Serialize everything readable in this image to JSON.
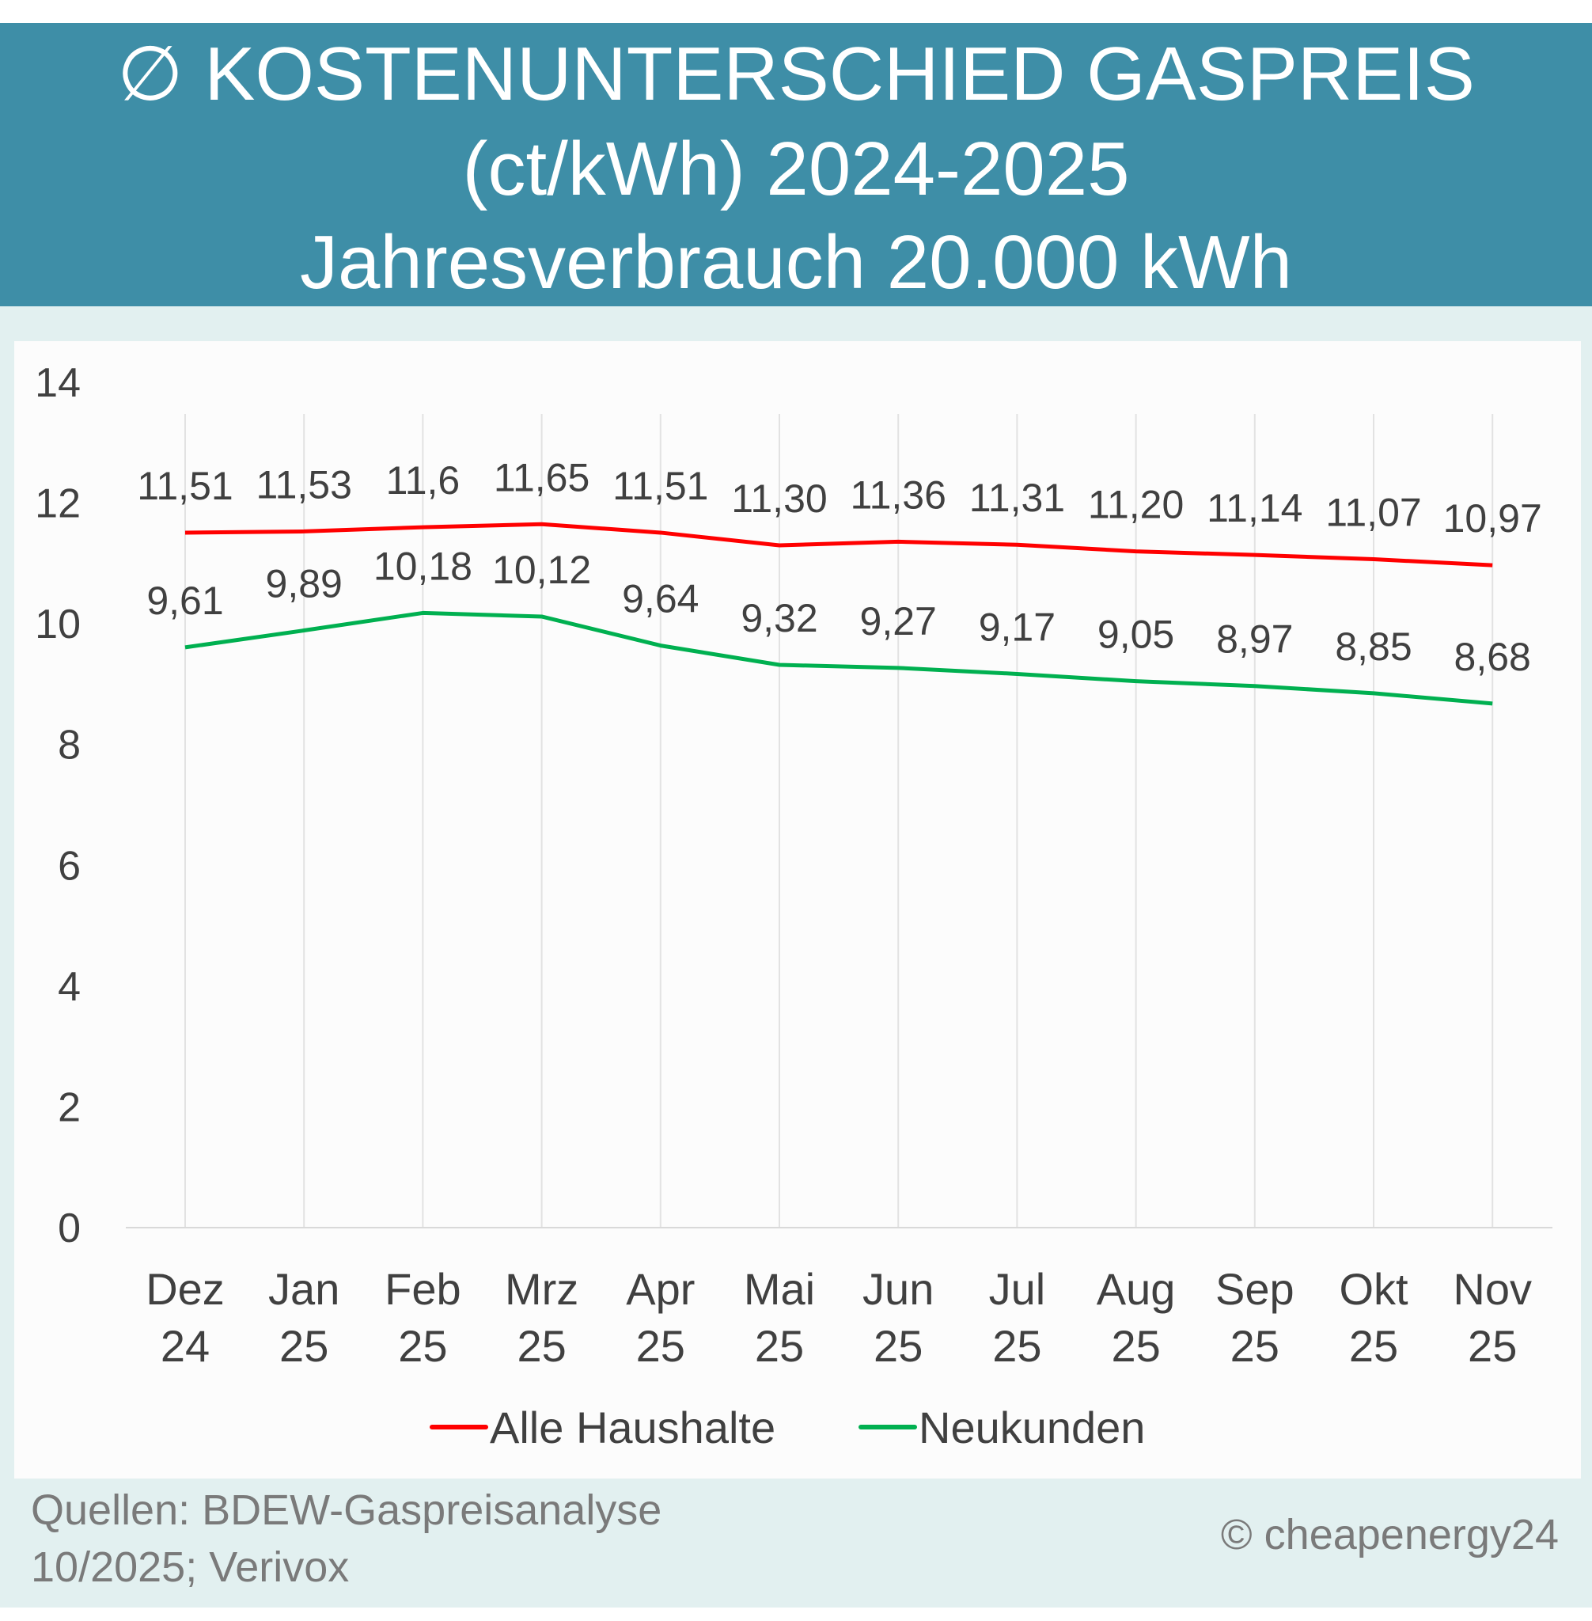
{
  "header": {
    "title_line1": "∅ KOSTENUNTERSCHIED GASPREIS",
    "title_line2": "(ct/kWh) 2024-2025",
    "title_line3": "Jahresverbrauch 20.000 kWh"
  },
  "footer": {
    "source_line1": "Quellen: BDEW-Gaspreisanalyse",
    "source_line2": "10/2025; Verivox",
    "copyright": "© cheapenergy24"
  },
  "chart_data": {
    "type": "line",
    "title": "∅ KOSTENUNTERSCHIED GASPREIS (ct/kWh) 2024-2025 Jahresverbrauch 20.000 kWh",
    "categories": [
      [
        "Dez",
        "24"
      ],
      [
        "Jan",
        "25"
      ],
      [
        "Feb",
        "25"
      ],
      [
        "Mrz",
        "25"
      ],
      [
        "Apr",
        "25"
      ],
      [
        "Mai",
        "25"
      ],
      [
        "Jun",
        "25"
      ],
      [
        "Jul",
        "25"
      ],
      [
        "Aug",
        "25"
      ],
      [
        "Sep",
        "25"
      ],
      [
        "Okt",
        "25"
      ],
      [
        "Nov",
        "25"
      ]
    ],
    "ylim": [
      0,
      14
    ],
    "yticks": [
      "0",
      "2",
      "4",
      "6",
      "8",
      "10",
      "12",
      "14"
    ],
    "grid": "vertical",
    "legend": "bottom",
    "series": [
      {
        "name": "Alle Haushalte",
        "color": "#ff0000",
        "values": [
          11.51,
          11.53,
          11.6,
          11.65,
          11.51,
          11.3,
          11.36,
          11.31,
          11.2,
          11.14,
          11.07,
          10.97
        ],
        "labels": [
          "11,51",
          "11,53",
          "11,6",
          "11,65",
          "11,51",
          "11,30",
          "11,36",
          "11,31",
          "11,20",
          "11,14",
          "11,07",
          "10,97"
        ]
      },
      {
        "name": "Neukunden",
        "color": "#00b050",
        "values": [
          9.61,
          9.89,
          10.18,
          10.12,
          9.64,
          9.32,
          9.27,
          9.17,
          9.05,
          8.97,
          8.85,
          8.68
        ],
        "labels": [
          "9,61",
          "9,89",
          "10,18",
          "10,12",
          "9,64",
          "9,32",
          "9,27",
          "9,17",
          "9,05",
          "8,97",
          "8,85",
          "8,68"
        ]
      }
    ]
  }
}
